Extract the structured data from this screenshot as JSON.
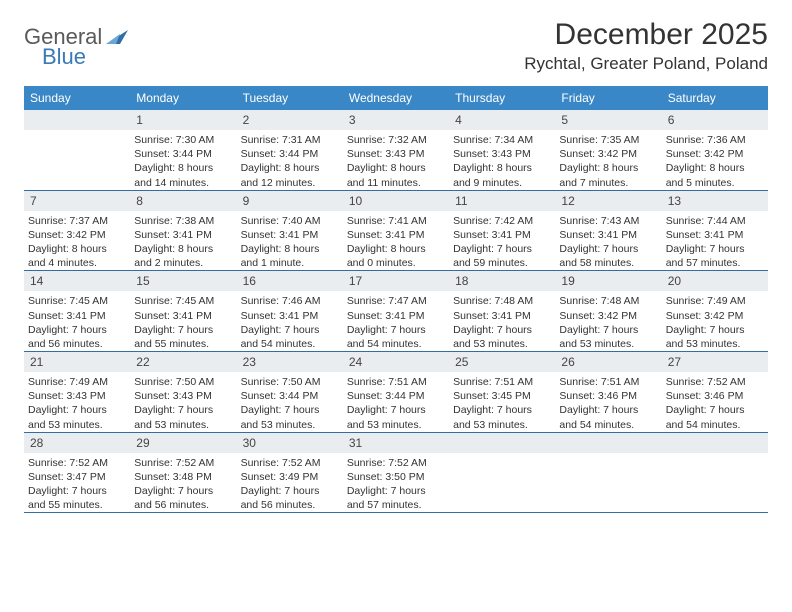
{
  "brand": {
    "general": "General",
    "blue": "Blue"
  },
  "title": "December 2025",
  "subtitle": "Rychtal, Greater Poland, Poland",
  "colors": {
    "header_bg": "#3a87c7",
    "header_text": "#ffffff",
    "daynum_bg": "#e9edef",
    "sep": "#2f6fa6",
    "logo_blue": "#3a7ab8",
    "logo_gray": "#5a5a5a"
  },
  "weekdays": [
    "Sunday",
    "Monday",
    "Tuesday",
    "Wednesday",
    "Thursday",
    "Friday",
    "Saturday"
  ],
  "weeks": [
    [
      null,
      {
        "n": "1",
        "sr": "7:30 AM",
        "ss": "3:44 PM",
        "dh": "8",
        "dm": "14"
      },
      {
        "n": "2",
        "sr": "7:31 AM",
        "ss": "3:44 PM",
        "dh": "8",
        "dm": "12"
      },
      {
        "n": "3",
        "sr": "7:32 AM",
        "ss": "3:43 PM",
        "dh": "8",
        "dm": "11"
      },
      {
        "n": "4",
        "sr": "7:34 AM",
        "ss": "3:43 PM",
        "dh": "8",
        "dm": "9"
      },
      {
        "n": "5",
        "sr": "7:35 AM",
        "ss": "3:42 PM",
        "dh": "8",
        "dm": "7"
      },
      {
        "n": "6",
        "sr": "7:36 AM",
        "ss": "3:42 PM",
        "dh": "8",
        "dm": "5"
      }
    ],
    [
      {
        "n": "7",
        "sr": "7:37 AM",
        "ss": "3:42 PM",
        "dh": "8",
        "dm": "4"
      },
      {
        "n": "8",
        "sr": "7:38 AM",
        "ss": "3:41 PM",
        "dh": "8",
        "dm": "2"
      },
      {
        "n": "9",
        "sr": "7:40 AM",
        "ss": "3:41 PM",
        "dh": "8",
        "dm": "1",
        "singular": true
      },
      {
        "n": "10",
        "sr": "7:41 AM",
        "ss": "3:41 PM",
        "dh": "8",
        "dm": "0"
      },
      {
        "n": "11",
        "sr": "7:42 AM",
        "ss": "3:41 PM",
        "dh": "7",
        "dm": "59"
      },
      {
        "n": "12",
        "sr": "7:43 AM",
        "ss": "3:41 PM",
        "dh": "7",
        "dm": "58"
      },
      {
        "n": "13",
        "sr": "7:44 AM",
        "ss": "3:41 PM",
        "dh": "7",
        "dm": "57"
      }
    ],
    [
      {
        "n": "14",
        "sr": "7:45 AM",
        "ss": "3:41 PM",
        "dh": "7",
        "dm": "56"
      },
      {
        "n": "15",
        "sr": "7:45 AM",
        "ss": "3:41 PM",
        "dh": "7",
        "dm": "55"
      },
      {
        "n": "16",
        "sr": "7:46 AM",
        "ss": "3:41 PM",
        "dh": "7",
        "dm": "54"
      },
      {
        "n": "17",
        "sr": "7:47 AM",
        "ss": "3:41 PM",
        "dh": "7",
        "dm": "54"
      },
      {
        "n": "18",
        "sr": "7:48 AM",
        "ss": "3:41 PM",
        "dh": "7",
        "dm": "53"
      },
      {
        "n": "19",
        "sr": "7:48 AM",
        "ss": "3:42 PM",
        "dh": "7",
        "dm": "53"
      },
      {
        "n": "20",
        "sr": "7:49 AM",
        "ss": "3:42 PM",
        "dh": "7",
        "dm": "53"
      }
    ],
    [
      {
        "n": "21",
        "sr": "7:49 AM",
        "ss": "3:43 PM",
        "dh": "7",
        "dm": "53"
      },
      {
        "n": "22",
        "sr": "7:50 AM",
        "ss": "3:43 PM",
        "dh": "7",
        "dm": "53"
      },
      {
        "n": "23",
        "sr": "7:50 AM",
        "ss": "3:44 PM",
        "dh": "7",
        "dm": "53"
      },
      {
        "n": "24",
        "sr": "7:51 AM",
        "ss": "3:44 PM",
        "dh": "7",
        "dm": "53"
      },
      {
        "n": "25",
        "sr": "7:51 AM",
        "ss": "3:45 PM",
        "dh": "7",
        "dm": "53"
      },
      {
        "n": "26",
        "sr": "7:51 AM",
        "ss": "3:46 PM",
        "dh": "7",
        "dm": "54"
      },
      {
        "n": "27",
        "sr": "7:52 AM",
        "ss": "3:46 PM",
        "dh": "7",
        "dm": "54"
      }
    ],
    [
      {
        "n": "28",
        "sr": "7:52 AM",
        "ss": "3:47 PM",
        "dh": "7",
        "dm": "55"
      },
      {
        "n": "29",
        "sr": "7:52 AM",
        "ss": "3:48 PM",
        "dh": "7",
        "dm": "56"
      },
      {
        "n": "30",
        "sr": "7:52 AM",
        "ss": "3:49 PM",
        "dh": "7",
        "dm": "56"
      },
      {
        "n": "31",
        "sr": "7:52 AM",
        "ss": "3:50 PM",
        "dh": "7",
        "dm": "57"
      },
      null,
      null,
      null
    ]
  ],
  "labels": {
    "sunrise": "Sunrise:",
    "sunset": "Sunset:",
    "daylight": "Daylight:",
    "hours": "hours",
    "and": "and",
    "minutes": "minutes.",
    "minute": "minute."
  }
}
